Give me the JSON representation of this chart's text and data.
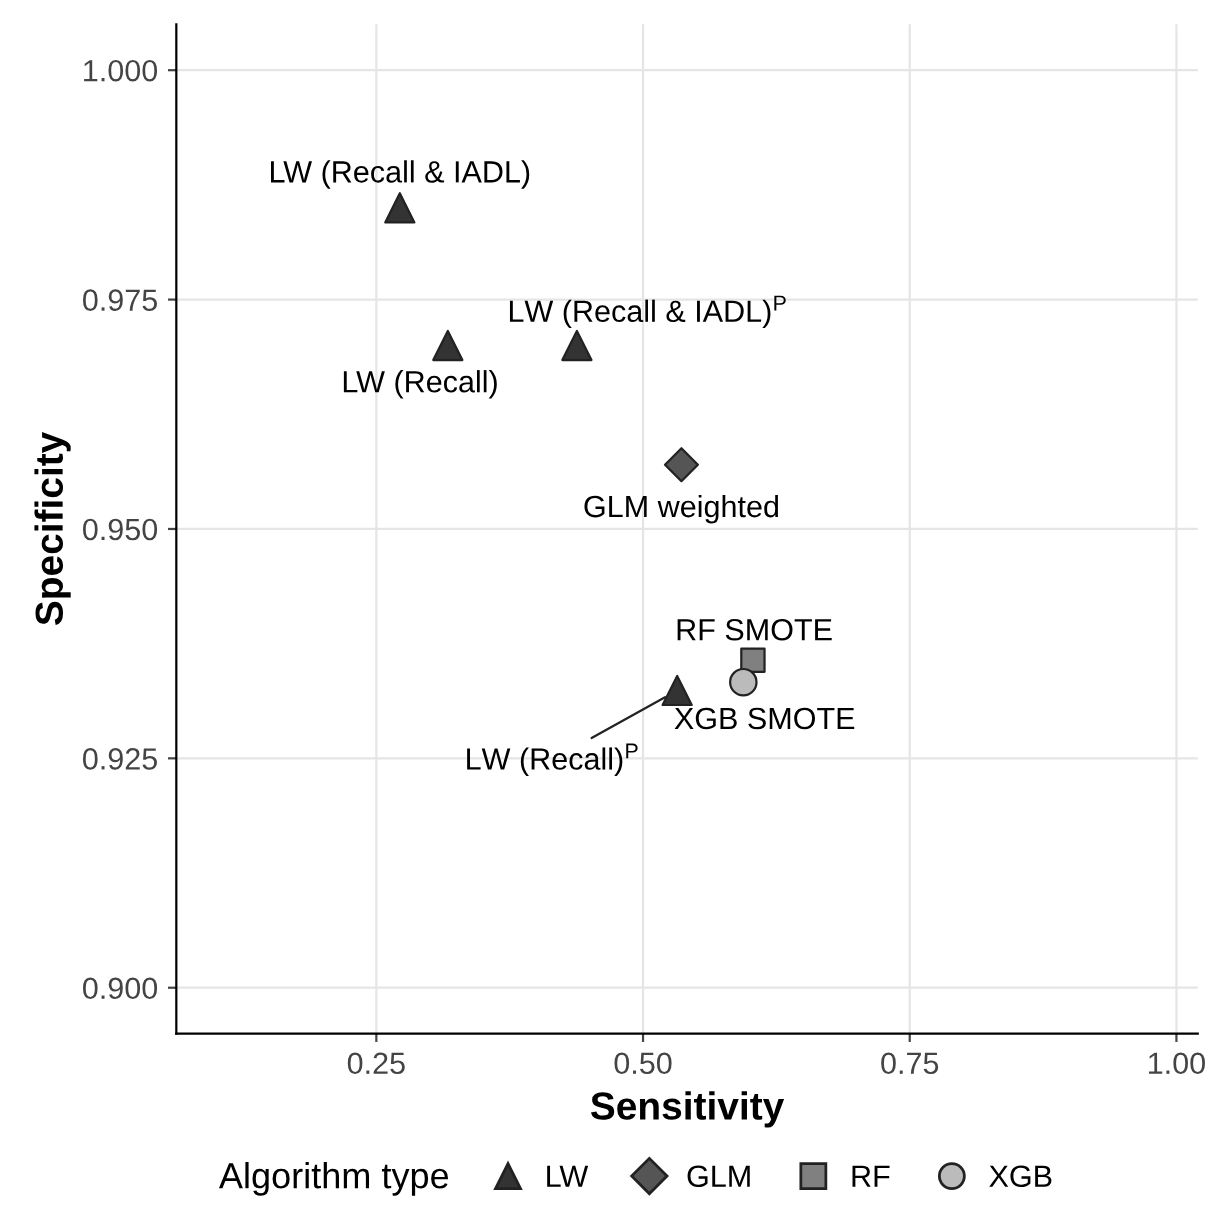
{
  "chart_data": {
    "type": "scatter",
    "xlabel": "Sensitivity",
    "ylabel": "Specificity",
    "legend_title": "Algorithm type",
    "xlim": [
      0.0625,
      1.02
    ],
    "ylim": [
      0.895,
      1.005
    ],
    "xticks": [
      0.25,
      {
        "value": 0.5,
        "label": "0.50"
      },
      0.75,
      {
        "value": 1.0,
        "label": "1.00"
      }
    ],
    "yticks": [
      {
        "value": 0.9,
        "label": "0.900"
      },
      0.925,
      {
        "value": 0.95,
        "label": "0.950"
      },
      0.975,
      {
        "value": 1.0,
        "label": "1.000"
      }
    ],
    "grid": true,
    "legend": "bottom",
    "series": [
      {
        "name": "LW",
        "color": "#333333",
        "marker": "triangle",
        "x": [
          0.272,
          0.317,
          0.438,
          0.532
        ],
        "values": [
          0.985,
          0.97,
          0.97,
          0.9324
        ]
      },
      {
        "name": "GLM",
        "color": "#555555",
        "marker": "diamond",
        "x": [
          0.536
        ],
        "values": [
          0.957
        ]
      },
      {
        "name": "RF",
        "color": "#808080",
        "marker": "square",
        "x": [
          0.603
        ],
        "values": [
          0.9357
        ]
      },
      {
        "name": "XGB",
        "color": "#bbbbbb",
        "marker": "circle",
        "x": [
          0.594
        ],
        "values": [
          0.9333
        ]
      }
    ],
    "annotations": [
      {
        "text": "LW (Recall & IADL)",
        "x": 0.272,
        "y": 0.985
      },
      {
        "text": "LW (Recall)",
        "x": 0.317,
        "y": 0.97
      },
      {
        "text": "LW (Recall & IADL)$^{P}$",
        "x": 0.438,
        "y": 0.97
      },
      {
        "text": "GLM weighted",
        "x": 0.536,
        "y": 0.957
      },
      {
        "text": "RF SMOTE",
        "x": 0.603,
        "y": 0.9357
      },
      {
        "text": "XGB SMOTE",
        "x": 0.594,
        "y": 0.9333
      },
      {
        "text": "LW (Recall)$^{P}$",
        "x": 0.532,
        "y": 0.9324
      }
    ]
  }
}
